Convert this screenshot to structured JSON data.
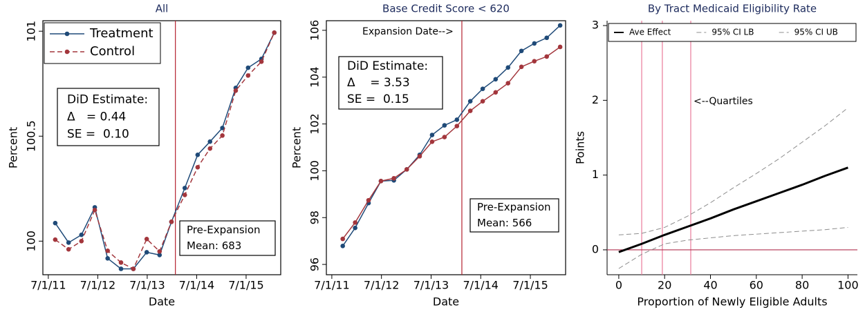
{
  "chart_data": [
    {
      "type": "line",
      "title": "All",
      "xlabel": "Date",
      "ylabel": "Percent",
      "x": [
        2011.64,
        2011.91,
        2012.17,
        2012.44,
        2012.7,
        2012.97,
        2013.22,
        2013.49,
        2013.75,
        2013.99,
        2014.26,
        2014.52,
        2014.77,
        2015.02,
        2015.29,
        2015.54,
        2015.81,
        2016.07
      ],
      "series": [
        {
          "name": "Treatment",
          "color": "#1f4a78",
          "marker": true,
          "dash": false,
          "line_width": 1.5,
          "values": [
            100.086,
            99.993,
            100.03,
            100.161,
            99.918,
            99.868,
            99.868,
            99.947,
            99.934,
            100.092,
            100.253,
            100.411,
            100.474,
            100.539,
            100.73,
            100.826,
            100.868,
            100.993
          ]
        },
        {
          "name": "Control",
          "color": "#a3363c",
          "marker": true,
          "dash": true,
          "line_width": 1.5,
          "values": [
            100.007,
            99.961,
            100.0,
            100.148,
            99.954,
            99.898,
            99.868,
            100.01,
            99.951,
            100.092,
            100.22,
            100.352,
            100.441,
            100.503,
            100.717,
            100.789,
            100.855,
            100.993
          ]
        }
      ],
      "xlim": [
        2011.39,
        2016.2
      ],
      "ylim": [
        99.84,
        101.05
      ],
      "xticks": [
        {
          "value": 2011.5,
          "label": "7/1/11"
        },
        {
          "value": 2012.5,
          "label": "7/1/12"
        },
        {
          "value": 2013.5,
          "label": "7/1/13"
        },
        {
          "value": 2014.5,
          "label": "7/1/14"
        },
        {
          "value": 2015.5,
          "label": "7/1/15"
        }
      ],
      "yticks": [
        100,
        100.5,
        101
      ],
      "vlines": [
        2014.07
      ],
      "vline_color": "#b3202e",
      "legend": "upper left",
      "annotations": [
        {
          "lines": [
            "DiD Estimate:",
            "Δ   = 0.44",
            "SE =  0.10"
          ],
          "box": true
        },
        {
          "lines": [
            "Pre-Expansion",
            "Mean: 683"
          ],
          "box": true
        }
      ]
    },
    {
      "type": "line",
      "title": "Base Credit Score < 620",
      "xlabel": "Date",
      "ylabel": "Percent",
      "x": [
        2011.72,
        2011.97,
        2012.24,
        2012.49,
        2012.75,
        2013.01,
        2013.27,
        2013.52,
        2013.77,
        2014.02,
        2014.29,
        2014.54,
        2014.8,
        2015.05,
        2015.32,
        2015.58,
        2015.83,
        2016.1
      ],
      "series": [
        {
          "name": "Treatment",
          "color": "#1f4a78",
          "marker": true,
          "dash": false,
          "line_width": 1.5,
          "values": [
            96.79,
            97.56,
            98.62,
            99.56,
            99.59,
            100.06,
            100.68,
            101.53,
            101.94,
            102.18,
            102.97,
            103.5,
            103.91,
            104.41,
            105.12,
            105.44,
            105.68,
            106.21
          ]
        },
        {
          "name": "Control",
          "color": "#a3363c",
          "marker": true,
          "dash": false,
          "line_width": 1.5,
          "values": [
            97.09,
            97.79,
            98.74,
            99.56,
            99.68,
            100.06,
            100.62,
            101.24,
            101.44,
            101.91,
            102.56,
            102.97,
            103.35,
            103.74,
            104.44,
            104.68,
            104.88,
            105.29
          ]
        }
      ],
      "xlim": [
        2011.39,
        2016.21
      ],
      "ylim": [
        95.56,
        106.41
      ],
      "xticks": [
        {
          "value": 2011.5,
          "label": "7/1/11"
        },
        {
          "value": 2012.5,
          "label": "7/1/12"
        },
        {
          "value": 2013.5,
          "label": "7/1/13"
        },
        {
          "value": 2014.5,
          "label": "7/1/14"
        },
        {
          "value": 2015.5,
          "label": "7/1/15"
        }
      ],
      "yticks": [
        96,
        98,
        100,
        102,
        104,
        106
      ],
      "vlines": [
        2014.12
      ],
      "vline_color": "#b3202e",
      "annotations": [
        {
          "lines": [
            "Expansion Date-->"
          ],
          "box": false
        },
        {
          "lines": [
            "DiD Estimate:",
            "Δ    = 3.53",
            "SE =  0.15"
          ],
          "box": true
        },
        {
          "lines": [
            "Pre-Expansion",
            "Mean: 566"
          ],
          "box": true
        }
      ]
    },
    {
      "type": "line",
      "title": "By Tract Medicaid Eligibility Rate",
      "xlabel": "Proportion of Newly Eligible Adults",
      "ylabel": "Points",
      "x": [
        0,
        10,
        20,
        30,
        40,
        50,
        60,
        70,
        80,
        90,
        100
      ],
      "series": [
        {
          "name": "Ave Effect",
          "color": "#000000",
          "marker": false,
          "dash": false,
          "line_width": 3,
          "values": [
            -0.03,
            0.08,
            0.2,
            0.31,
            0.42,
            0.54,
            0.65,
            0.76,
            0.87,
            0.99,
            1.1
          ]
        },
        {
          "name": "95% CI LB",
          "color": "#8c8c8c",
          "marker": false,
          "dash": true,
          "line_width": 1,
          "values": [
            -0.25,
            -0.06,
            0.08,
            0.13,
            0.16,
            0.19,
            0.21,
            0.23,
            0.25,
            0.27,
            0.3
          ]
        },
        {
          "name": "95% CI UB",
          "color": "#8c8c8c",
          "marker": false,
          "dash": true,
          "line_width": 1,
          "values": [
            0.2,
            0.22,
            0.3,
            0.45,
            0.63,
            0.83,
            1.02,
            1.22,
            1.44,
            1.66,
            1.9
          ]
        }
      ],
      "xlim": [
        -5.1,
        104.1
      ],
      "ylim": [
        -0.333,
        3.065
      ],
      "xticks": [
        0,
        20,
        40,
        60,
        80,
        100
      ],
      "yticks": [
        0,
        1,
        2,
        3
      ],
      "vlines": [
        10,
        19,
        31.4
      ],
      "vline_color": "#e97a99",
      "hlines": [
        0
      ],
      "hline_color": "#b0304f",
      "legend": "top",
      "annotations": [
        {
          "lines": [
            "<--Quartiles"
          ],
          "box": false
        }
      ]
    }
  ]
}
